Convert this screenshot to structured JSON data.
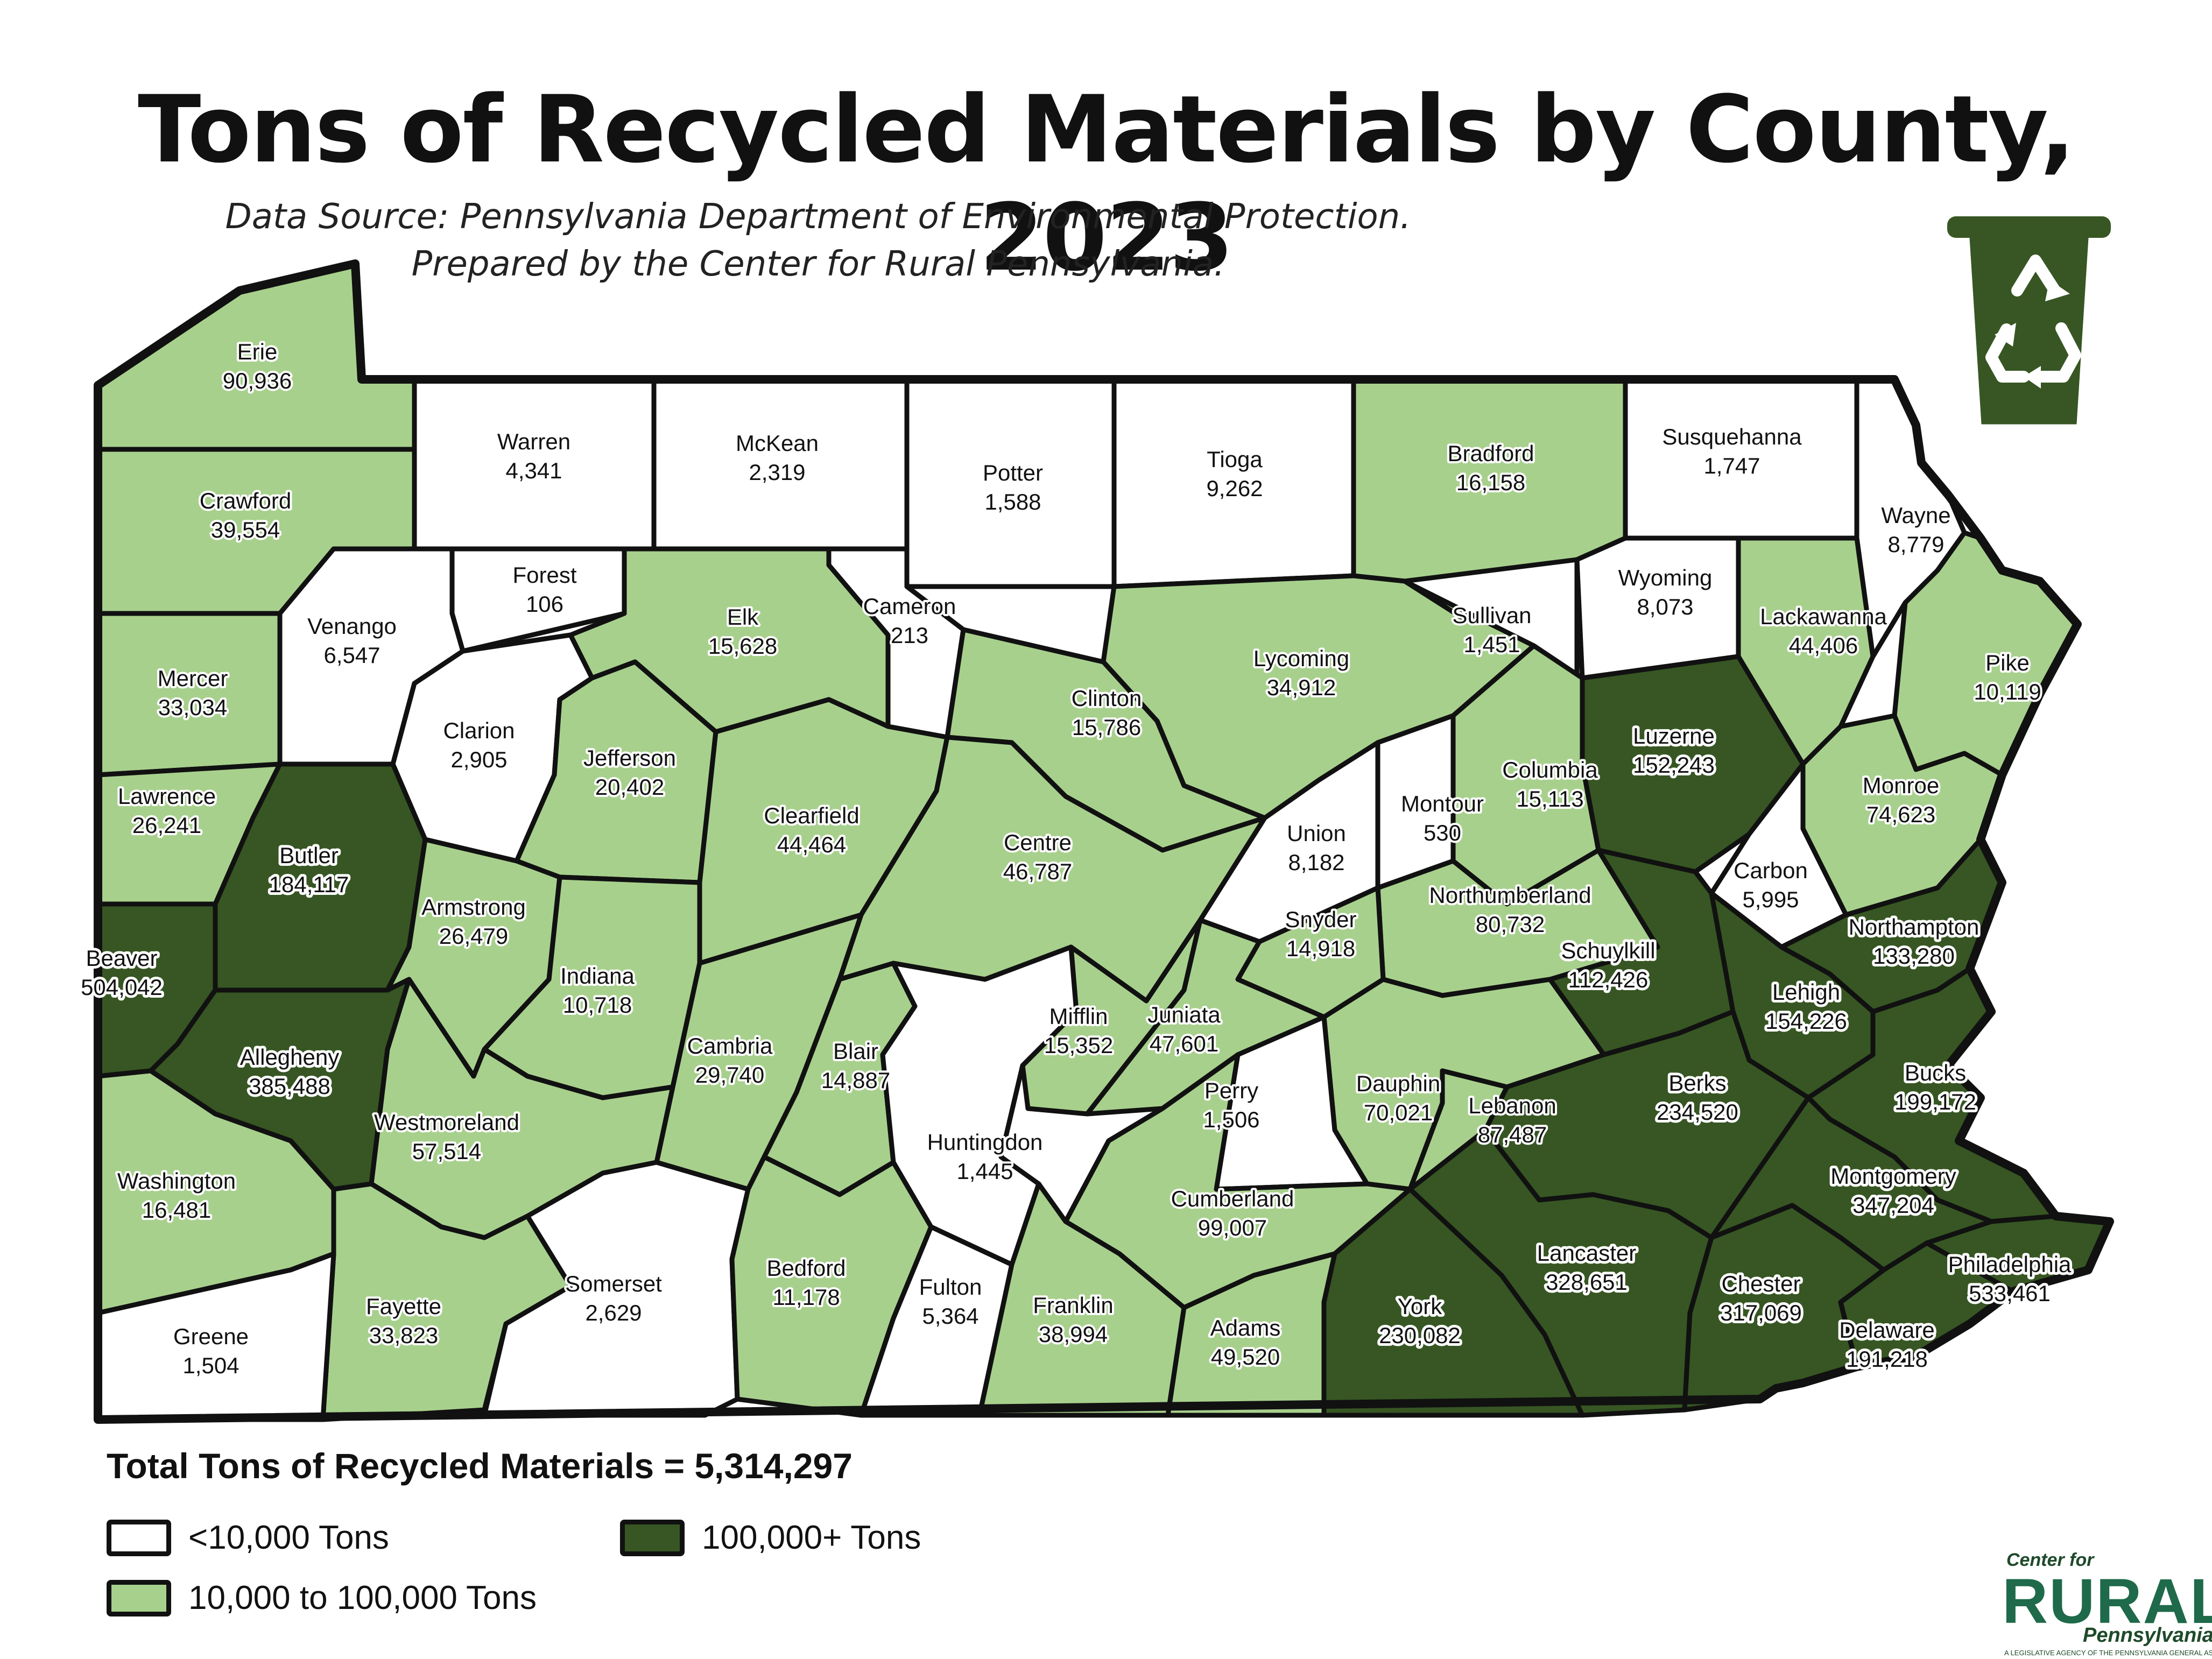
{
  "title": "Tons of Recycled Materials by County, 2023",
  "subtitle_line1": "Data Source: Pennsylvania Department of Environmental Protection.",
  "subtitle_line2": "Prepared by the Center for Rural Pennsylvania.",
  "icon": "recycle-bin-icon",
  "colors": {
    "low": "#ffffff",
    "mid": "#a8d08d",
    "high": "#375623",
    "border": "#111111",
    "bin": "#375623"
  },
  "counties": [
    {
      "name": "Erie",
      "value": "90,936",
      "tier": "mid"
    },
    {
      "name": "Warren",
      "value": "4,341",
      "tier": "low"
    },
    {
      "name": "McKean",
      "value": "2,319",
      "tier": "low"
    },
    {
      "name": "Potter",
      "value": "1,588",
      "tier": "low"
    },
    {
      "name": "Tioga",
      "value": "9,262",
      "tier": "low"
    },
    {
      "name": "Bradford",
      "value": "16,158",
      "tier": "mid"
    },
    {
      "name": "Susquehanna",
      "value": "1,747",
      "tier": "low"
    },
    {
      "name": "Wayne",
      "value": "8,779",
      "tier": "low"
    },
    {
      "name": "Crawford",
      "value": "39,554",
      "tier": "mid"
    },
    {
      "name": "Forest",
      "value": "106",
      "tier": "low"
    },
    {
      "name": "Venango",
      "value": "6,547",
      "tier": "low"
    },
    {
      "name": "Elk",
      "value": "15,628",
      "tier": "mid"
    },
    {
      "name": "Cameron",
      "value": "213",
      "tier": "low"
    },
    {
      "name": "Lycoming",
      "value": "34,912",
      "tier": "mid"
    },
    {
      "name": "Sullivan",
      "value": "1,451",
      "tier": "low"
    },
    {
      "name": "Wyoming",
      "value": "8,073",
      "tier": "low"
    },
    {
      "name": "Lackawanna",
      "value": "44,406",
      "tier": "mid"
    },
    {
      "name": "Pike",
      "value": "10,119",
      "tier": "mid"
    },
    {
      "name": "Mercer",
      "value": "33,034",
      "tier": "mid"
    },
    {
      "name": "Clarion",
      "value": "2,905",
      "tier": "low"
    },
    {
      "name": "Jefferson",
      "value": "20,402",
      "tier": "mid"
    },
    {
      "name": "Clinton",
      "value": "15,786",
      "tier": "mid"
    },
    {
      "name": "Clearfield",
      "value": "44,464",
      "tier": "mid"
    },
    {
      "name": "Luzerne",
      "value": "152,243",
      "tier": "high"
    },
    {
      "name": "Columbia",
      "value": "15,113",
      "tier": "mid"
    },
    {
      "name": "Montour",
      "value": "530",
      "tier": "low"
    },
    {
      "name": "Lawrence",
      "value": "26,241",
      "tier": "mid"
    },
    {
      "name": "Butler",
      "value": "184,117",
      "tier": "high"
    },
    {
      "name": "Centre",
      "value": "46,787",
      "tier": "mid"
    },
    {
      "name": "Union",
      "value": "8,182",
      "tier": "low"
    },
    {
      "name": "Monroe",
      "value": "74,623",
      "tier": "mid"
    },
    {
      "name": "Carbon",
      "value": "5,995",
      "tier": "low"
    },
    {
      "name": "Armstrong",
      "value": "26,479",
      "tier": "mid"
    },
    {
      "name": "Northumberland",
      "value": "80,732",
      "tier": "mid"
    },
    {
      "name": "Snyder",
      "value": "14,918",
      "tier": "mid"
    },
    {
      "name": "Schuylkill",
      "value": "112,426",
      "tier": "high"
    },
    {
      "name": "Northampton",
      "value": "133,280",
      "tier": "high"
    },
    {
      "name": "Beaver",
      "value": "504,042",
      "tier": "high"
    },
    {
      "name": "Indiana",
      "value": "10,718",
      "tier": "mid"
    },
    {
      "name": "Lehigh",
      "value": "154,226",
      "tier": "high"
    },
    {
      "name": "Mifflin",
      "value": "15,352",
      "tier": "mid"
    },
    {
      "name": "Juniata",
      "value": "47,601",
      "tier": "mid"
    },
    {
      "name": "Allegheny",
      "value": "385,488",
      "tier": "high"
    },
    {
      "name": "Cambria",
      "value": "29,740",
      "tier": "mid"
    },
    {
      "name": "Blair",
      "value": "14,887",
      "tier": "mid"
    },
    {
      "name": "Dauphin",
      "value": "70,021",
      "tier": "mid"
    },
    {
      "name": "Perry",
      "value": "1,506",
      "tier": "low"
    },
    {
      "name": "Lebanon",
      "value": "87,487",
      "tier": "mid"
    },
    {
      "name": "Berks",
      "value": "234,520",
      "tier": "high"
    },
    {
      "name": "Bucks",
      "value": "199,172",
      "tier": "high"
    },
    {
      "name": "Westmoreland",
      "value": "57,514",
      "tier": "mid"
    },
    {
      "name": "Huntingdon",
      "value": "1,445",
      "tier": "low"
    },
    {
      "name": "Washington",
      "value": "16,481",
      "tier": "mid"
    },
    {
      "name": "Montgomery",
      "value": "347,204",
      "tier": "high"
    },
    {
      "name": "Cumberland",
      "value": "99,007",
      "tier": "mid"
    },
    {
      "name": "Lancaster",
      "value": "328,651",
      "tier": "high"
    },
    {
      "name": "Philadelphia",
      "value": "533,461",
      "tier": "high"
    },
    {
      "name": "Somerset",
      "value": "2,629",
      "tier": "low"
    },
    {
      "name": "Bedford",
      "value": "11,178",
      "tier": "mid"
    },
    {
      "name": "Fulton",
      "value": "5,364",
      "tier": "low"
    },
    {
      "name": "Franklin",
      "value": "38,994",
      "tier": "mid"
    },
    {
      "name": "Adams",
      "value": "49,520",
      "tier": "mid"
    },
    {
      "name": "York",
      "value": "230,082",
      "tier": "high"
    },
    {
      "name": "Chester",
      "value": "317,069",
      "tier": "high"
    },
    {
      "name": "Delaware",
      "value": "191,218",
      "tier": "high"
    },
    {
      "name": "Fayette",
      "value": "33,823",
      "tier": "mid"
    },
    {
      "name": "Greene",
      "value": "1,504",
      "tier": "low"
    }
  ],
  "total_label": "Total Tons of Recycled Materials = 5,314,297",
  "legend": [
    {
      "label": "<10,000 Tons",
      "tier": "low"
    },
    {
      "label": "100,000+ Tons",
      "tier": "high"
    },
    {
      "label": "10,000 to 100,000 Tons",
      "tier": "mid"
    }
  ],
  "logo": {
    "line1": "Center for",
    "line2": "RURAL",
    "line3": "Pennsylvania",
    "tagline": "A LEGISLATIVE AGENCY OF THE PENNSYLVANIA GENERAL ASSEMBLY"
  }
}
